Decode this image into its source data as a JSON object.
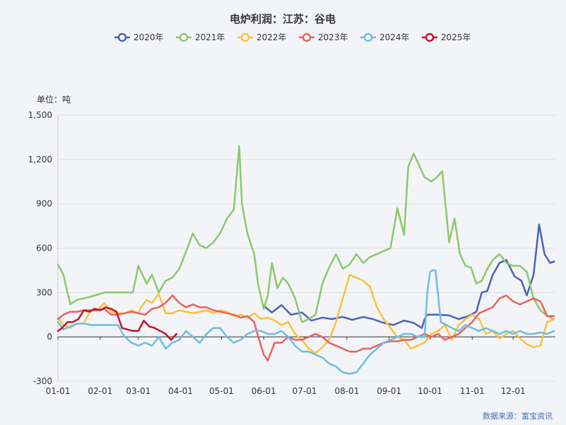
{
  "chart_data": {
    "type": "line",
    "title": "电炉利润：江苏：谷电",
    "unit_label": "单位：吨",
    "source": "数据来源：富宝资讯",
    "ylim": [
      -300,
      1500
    ],
    "yticks": [
      -300,
      0,
      300,
      600,
      900,
      "1,200",
      "1,500"
    ],
    "ytick_values": [
      -300,
      0,
      300,
      600,
      900,
      1200,
      1500
    ],
    "xticks": [
      "01-01",
      "02-01",
      "03-01",
      "04-01",
      "05-01",
      "06-01",
      "07-01",
      "08-01",
      "09-01",
      "10-01",
      "11-01",
      "12-01"
    ],
    "x_unit": "month-day (day of year)",
    "legend_position": "top-center",
    "grid": "horizontal",
    "series": [
      {
        "name": "2020年",
        "color": "#4a62b7",
        "x": [
          152,
          158,
          165,
          172,
          180,
          187,
          195,
          202,
          210,
          217,
          225,
          232,
          240,
          247,
          255,
          262,
          268,
          270,
          272,
          280,
          288,
          295,
          302,
          308,
          312,
          316,
          320,
          325,
          330,
          336,
          341,
          345,
          350,
          354,
          358,
          362,
          365
        ],
        "y": [
          210,
          165,
          215,
          150,
          165,
          110,
          130,
          120,
          135,
          115,
          135,
          120,
          95,
          80,
          110,
          95,
          60,
          120,
          150,
          150,
          145,
          120,
          140,
          170,
          300,
          310,
          420,
          500,
          520,
          410,
          380,
          280,
          420,
          760,
          560,
          500,
          510
        ]
      },
      {
        "name": "2021年",
        "color": "#8dc86a",
        "x": [
          1,
          5,
          10,
          15,
          20,
          28,
          35,
          42,
          50,
          56,
          60,
          66,
          70,
          75,
          80,
          85,
          90,
          96,
          100,
          105,
          110,
          115,
          120,
          125,
          130,
          134,
          136,
          140,
          145,
          148,
          152,
          155,
          158,
          162,
          166,
          170,
          175,
          180,
          185,
          190,
          195,
          200,
          205,
          210,
          215,
          220,
          225,
          230,
          235,
          240,
          245,
          250,
          255,
          258,
          262,
          266,
          270,
          275,
          279,
          283,
          288,
          292,
          296,
          300,
          304,
          308,
          312,
          316,
          320,
          325,
          330,
          335,
          340,
          345,
          350,
          355,
          360,
          365
        ],
        "y": [
          490,
          420,
          220,
          250,
          260,
          280,
          300,
          300,
          300,
          300,
          480,
          360,
          420,
          300,
          380,
          400,
          460,
          600,
          700,
          620,
          600,
          640,
          700,
          800,
          860,
          1290,
          900,
          700,
          560,
          350,
          190,
          280,
          500,
          330,
          400,
          360,
          260,
          100,
          120,
          150,
          360,
          470,
          560,
          460,
          490,
          560,
          500,
          540,
          560,
          580,
          600,
          870,
          690,
          1150,
          1240,
          1160,
          1080,
          1050,
          1080,
          1120,
          640,
          800,
          560,
          480,
          470,
          360,
          380,
          460,
          520,
          560,
          500,
          480,
          480,
          440,
          260,
          180,
          140,
          120
        ]
      },
      {
        "name": "2022年",
        "color": "#f9c23c",
        "x": [
          1,
          5,
          10,
          15,
          20,
          25,
          30,
          35,
          40,
          45,
          50,
          55,
          60,
          62,
          66,
          70,
          75,
          80,
          85,
          90,
          95,
          100,
          105,
          110,
          115,
          120,
          125,
          130,
          135,
          140,
          145,
          150,
          155,
          160,
          165,
          170,
          175,
          180,
          185,
          190,
          195,
          200,
          205,
          210,
          215,
          220,
          225,
          230,
          235,
          240,
          245,
          250,
          255,
          260,
          265,
          270,
          275,
          280,
          285,
          290,
          295,
          300,
          305,
          310,
          315,
          320,
          325,
          330,
          335,
          340,
          345,
          350,
          355,
          360,
          365
        ],
        "y": [
          130,
          80,
          60,
          90,
          90,
          180,
          180,
          230,
          170,
          160,
          160,
          180,
          160,
          200,
          250,
          230,
          290,
          160,
          160,
          180,
          170,
          160,
          170,
          180,
          160,
          180,
          170,
          140,
          150,
          130,
          160,
          120,
          130,
          110,
          80,
          100,
          20,
          -20,
          -80,
          -110,
          -70,
          -20,
          100,
          260,
          420,
          400,
          380,
          340,
          200,
          120,
          60,
          0,
          -20,
          -80,
          -60,
          -40,
          20,
          40,
          80,
          -20,
          80,
          120,
          150,
          120,
          20,
          40,
          -10,
          20,
          40,
          -10,
          -50,
          -70,
          -60,
          100,
          120
        ]
      },
      {
        "name": "2023年",
        "color": "#e8625c",
        "x": [
          1,
          5,
          10,
          15,
          20,
          25,
          30,
          35,
          40,
          45,
          50,
          55,
          60,
          65,
          70,
          75,
          80,
          85,
          90,
          95,
          100,
          105,
          110,
          115,
          120,
          125,
          130,
          135,
          140,
          145,
          148,
          152,
          155,
          160,
          165,
          170,
          175,
          180,
          185,
          190,
          195,
          200,
          205,
          210,
          215,
          220,
          225,
          230,
          235,
          240,
          245,
          250,
          255,
          260,
          265,
          270,
          275,
          280,
          285,
          290,
          295,
          300,
          305,
          310,
          315,
          320,
          325,
          330,
          335,
          340,
          345,
          350,
          355,
          360,
          365
        ],
        "y": [
          120,
          150,
          170,
          170,
          180,
          180,
          180,
          190,
          150,
          150,
          160,
          170,
          160,
          150,
          190,
          200,
          230,
          280,
          230,
          200,
          220,
          200,
          200,
          180,
          170,
          160,
          150,
          130,
          140,
          100,
          0,
          -120,
          -160,
          -40,
          -40,
          0,
          -20,
          -20,
          0,
          20,
          0,
          -40,
          -60,
          -80,
          -100,
          -100,
          -80,
          -80,
          -60,
          -40,
          -30,
          -30,
          -20,
          -20,
          0,
          20,
          0,
          20,
          -20,
          0,
          20,
          60,
          100,
          160,
          180,
          200,
          260,
          280,
          240,
          220,
          240,
          260,
          240,
          140,
          140
        ]
      },
      {
        "name": "2024年",
        "color": "#6bbfdd",
        "x": [
          1,
          5,
          10,
          15,
          20,
          25,
          30,
          35,
          40,
          45,
          50,
          55,
          60,
          65,
          70,
          75,
          80,
          85,
          90,
          95,
          100,
          105,
          110,
          115,
          120,
          125,
          130,
          135,
          140,
          145,
          150,
          155,
          160,
          165,
          170,
          175,
          180,
          185,
          190,
          195,
          200,
          205,
          210,
          215,
          220,
          225,
          230,
          235,
          240,
          245,
          250,
          255,
          260,
          265,
          270,
          272,
          274,
          276,
          278,
          282,
          286,
          290,
          295,
          300,
          305,
          310,
          315,
          320,
          325,
          330,
          335,
          340,
          345,
          350,
          355,
          360,
          365
        ],
        "y": [
          100,
          50,
          70,
          90,
          90,
          80,
          80,
          80,
          80,
          80,
          0,
          -40,
          -60,
          -40,
          -60,
          0,
          -80,
          -40,
          -20,
          40,
          0,
          -40,
          20,
          60,
          60,
          0,
          -40,
          -20,
          20,
          40,
          40,
          20,
          20,
          40,
          0,
          -60,
          -100,
          -100,
          -120,
          -140,
          -180,
          -200,
          -240,
          -250,
          -240,
          -180,
          -120,
          -80,
          -40,
          -20,
          0,
          20,
          20,
          0,
          0,
          300,
          440,
          450,
          450,
          100,
          80,
          60,
          40,
          80,
          60,
          40,
          60,
          40,
          20,
          40,
          20,
          40,
          20,
          20,
          30,
          20,
          40
        ]
      },
      {
        "name": "2025年",
        "color": "#c0142a",
        "x": [
          1,
          4,
          8,
          12,
          16,
          20,
          24,
          28,
          32,
          36,
          40,
          44,
          48,
          52,
          56,
          60,
          64,
          68,
          72,
          76,
          80,
          84,
          88
        ],
        "y": [
          40,
          60,
          100,
          100,
          120,
          180,
          170,
          190,
          180,
          200,
          190,
          170,
          60,
          50,
          40,
          40,
          110,
          70,
          60,
          40,
          20,
          -20,
          20
        ]
      }
    ]
  }
}
